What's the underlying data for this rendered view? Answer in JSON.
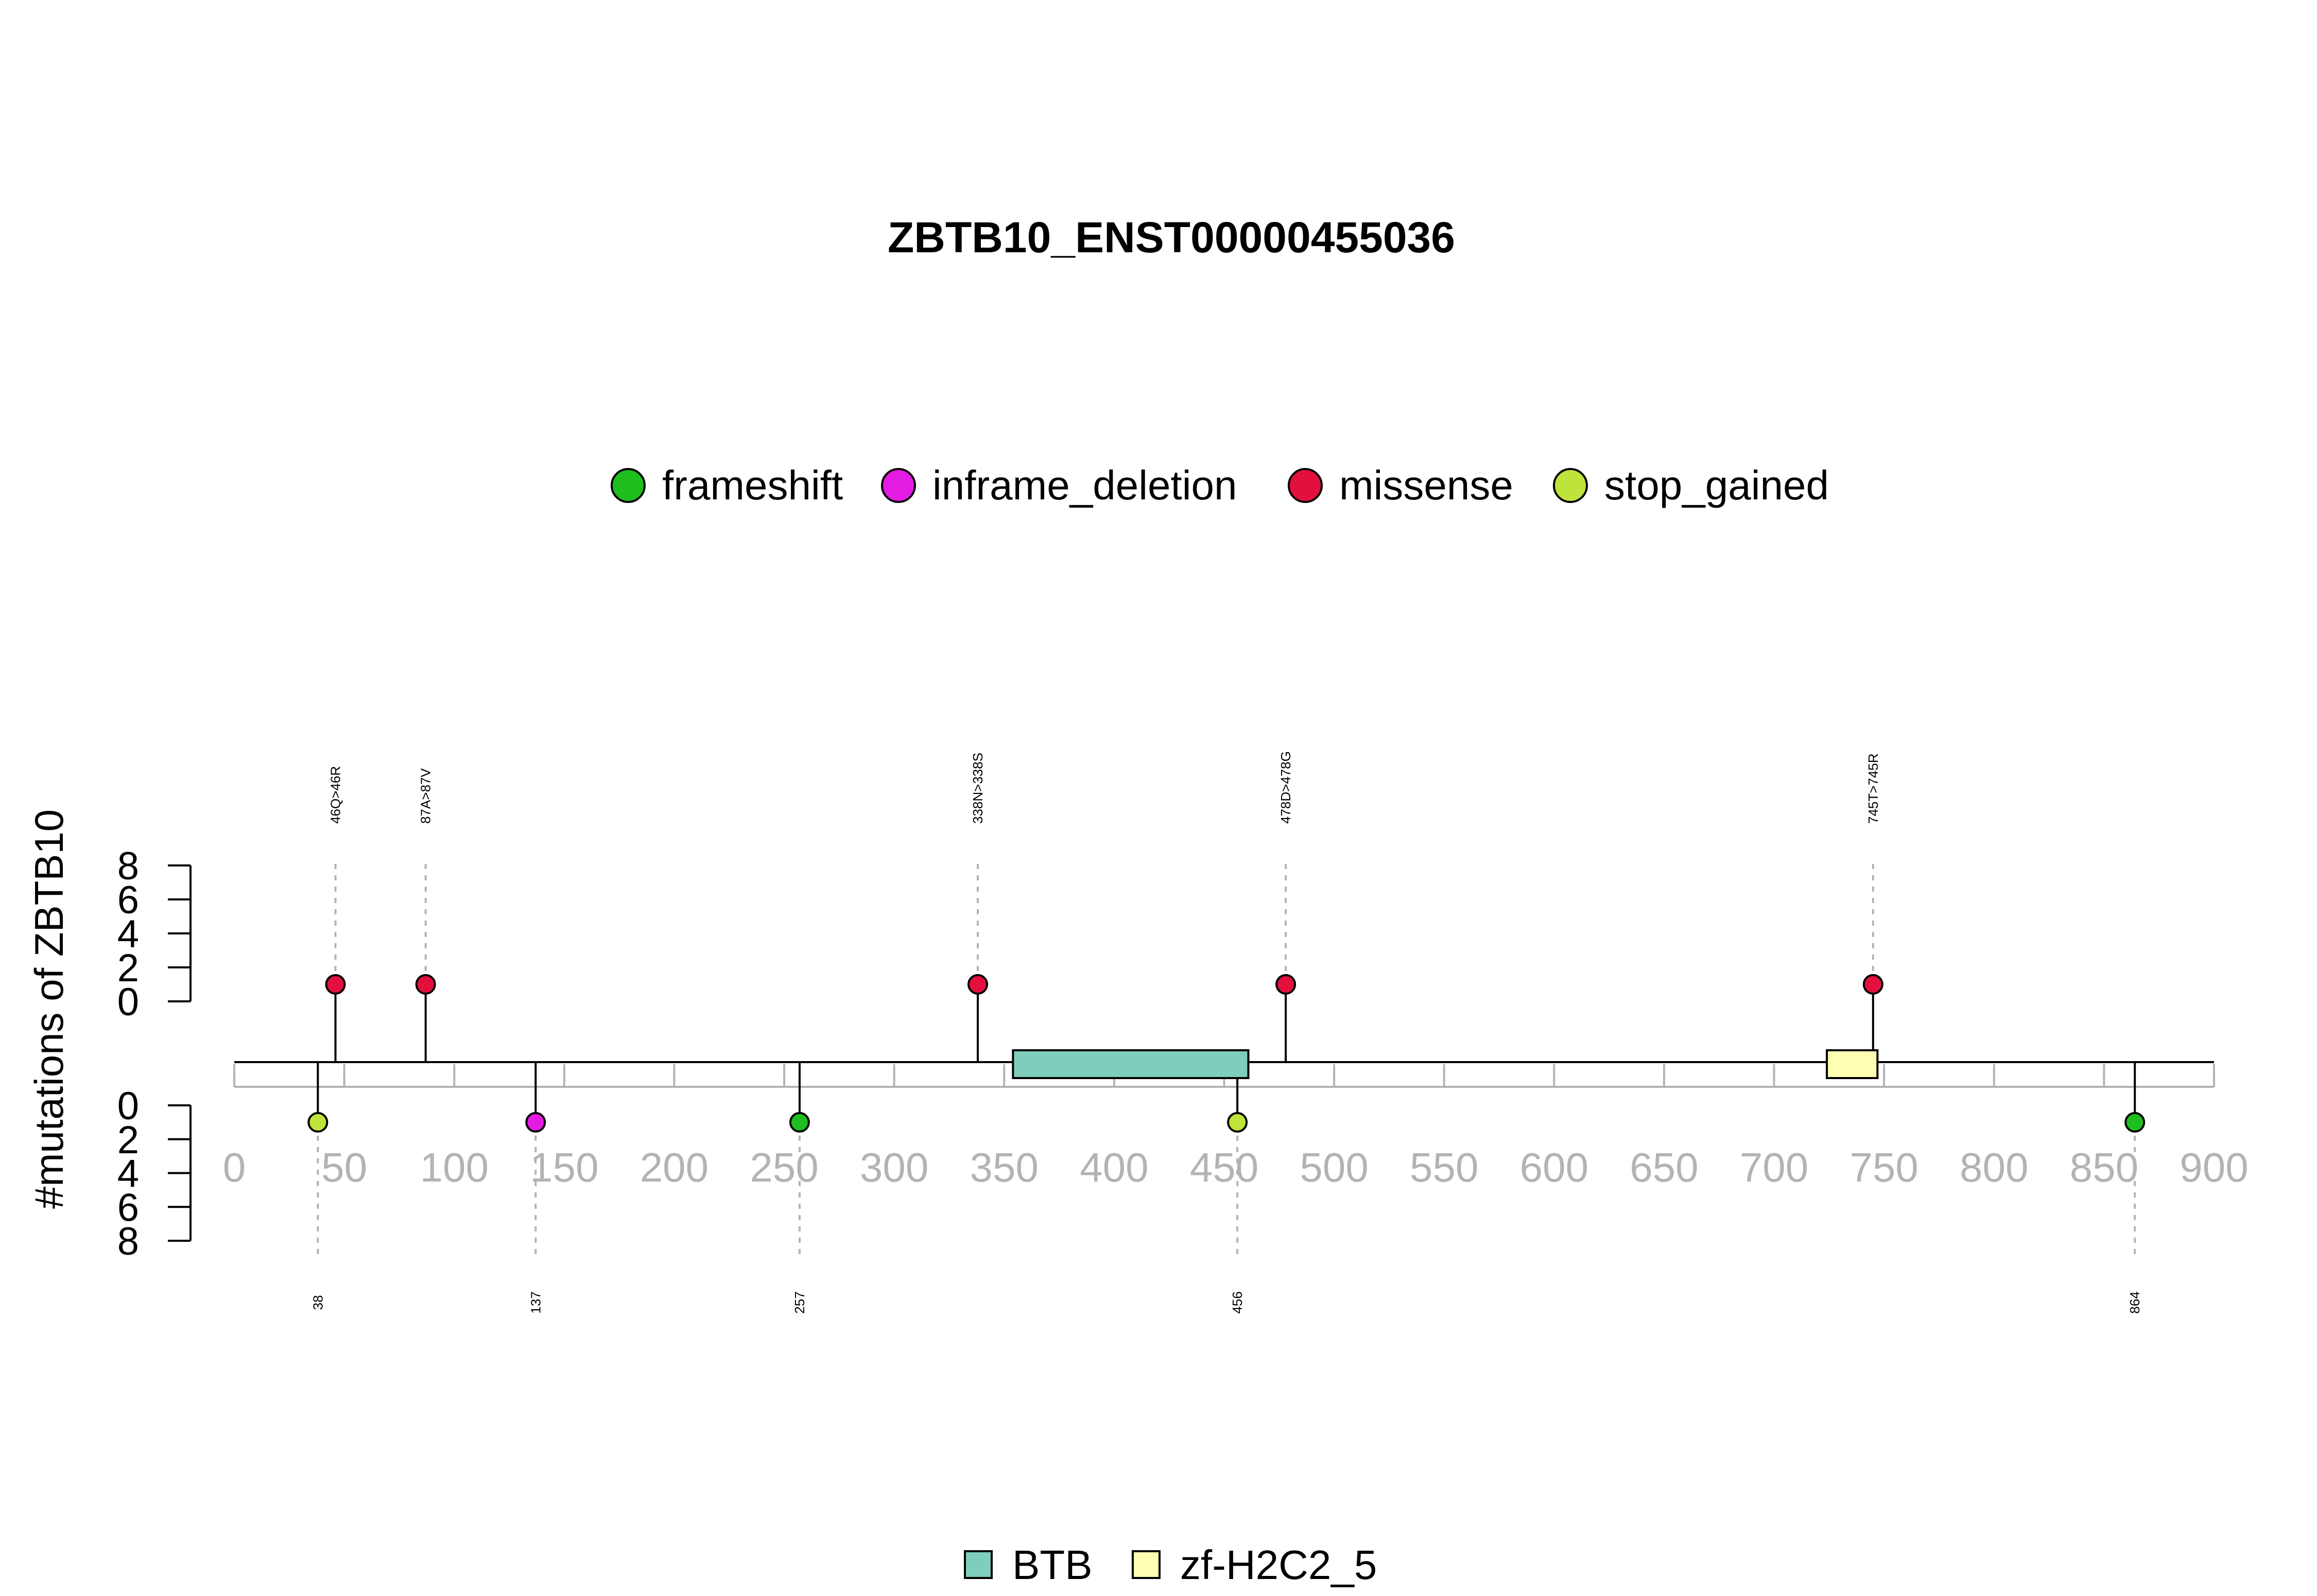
{
  "chart_data": {
    "type": "lollipop",
    "title": "ZBTB10_ENST00000455036",
    "ylabel": "#mutations of ZBTB10",
    "xlim": [
      0,
      900
    ],
    "x_ticks": [
      0,
      50,
      100,
      150,
      200,
      250,
      300,
      350,
      400,
      450,
      500,
      550,
      600,
      650,
      700,
      750,
      800,
      850,
      900
    ],
    "y_ticks": [
      0,
      2,
      4,
      6,
      8
    ],
    "ylim": [
      0,
      8
    ],
    "mutation_types": [
      {
        "name": "frameshift",
        "color": "#1EBE1E"
      },
      {
        "name": "inframe_deletion",
        "color": "#E31BE3"
      },
      {
        "name": "missense",
        "color": "#E3103D"
      },
      {
        "name": "stop_gained",
        "color": "#BEE33A"
      }
    ],
    "domains": [
      {
        "name": "BTB",
        "start": 354,
        "end": 461,
        "color": "#7FCDBB"
      },
      {
        "name": "zf-H2C2_5",
        "start": 724,
        "end": 747,
        "color": "#FFFFB3"
      }
    ],
    "mutations_top": [
      {
        "position": 46,
        "count": 1,
        "type": "missense",
        "label": "46Q>46R"
      },
      {
        "position": 87,
        "count": 1,
        "type": "missense",
        "label": "87A>87V"
      },
      {
        "position": 338,
        "count": 1,
        "type": "missense",
        "label": "338N>338S"
      },
      {
        "position": 478,
        "count": 1,
        "type": "missense",
        "label": "478D>478G"
      },
      {
        "position": 745,
        "count": 1,
        "type": "missense",
        "label": "745T>745R"
      }
    ],
    "mutations_bottom": [
      {
        "position": 38,
        "count": 1,
        "type": "stop_gained",
        "label": "38"
      },
      {
        "position": 137,
        "count": 1,
        "type": "inframe_deletion",
        "label": "137"
      },
      {
        "position": 257,
        "count": 1,
        "type": "frameshift",
        "label": "257"
      },
      {
        "position": 456,
        "count": 1,
        "type": "stop_gained",
        "label": "456"
      },
      {
        "position": 864,
        "count": 1,
        "type": "frameshift",
        "label": "864"
      }
    ]
  }
}
